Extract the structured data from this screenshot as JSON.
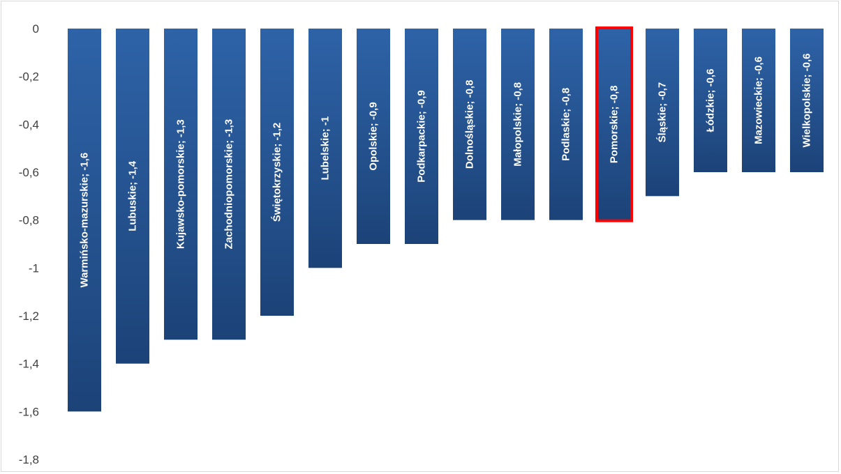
{
  "chart_data": {
    "type": "bar",
    "title": "",
    "xlabel": "",
    "ylabel": "",
    "ylim": [
      -1.8,
      0
    ],
    "y_ticks": [
      "0",
      "-0,2",
      "-0,4",
      "-0,6",
      "-0,8",
      "-1",
      "-1,2",
      "-1,4",
      "-1,6",
      "-1,8"
    ],
    "y_tick_values": [
      0,
      -0.2,
      -0.4,
      -0.6,
      -0.8,
      -1,
      -1.2,
      -1.4,
      -1.6,
      -1.8
    ],
    "grid": false,
    "legend": "none",
    "bar_color": "#2e63a8",
    "bar_color_dark": "#1c4378",
    "highlight_color": "#ff0000",
    "highlight_category": "Pomorskie",
    "categories": [
      "Warmińsko-mazurskie",
      "Lubuskie",
      "Kujawsko-pomorskie",
      "Zachodniopomorskie",
      "Świętokrzyskie",
      "Lubelskie",
      "Opolskie",
      "Podkarpackie",
      "Dolnośląskie",
      "Małopolskie",
      "Podlaskie",
      "Pomorskie",
      "Śląskie",
      "Łódzkie",
      "Mazowieckie",
      "Wielkopolskie"
    ],
    "values": [
      -1.6,
      -1.4,
      -1.3,
      -1.3,
      -1.2,
      -1,
      -0.9,
      -0.9,
      -0.8,
      -0.8,
      -0.8,
      -0.8,
      -0.7,
      -0.6,
      -0.6,
      -0.6
    ],
    "data_labels": [
      "Warmińsko-mazurskie; -1,6",
      "Lubuskie; -1,4",
      "Kujawsko-pomorskie; -1,3",
      "Zachodniopomorskie; -1,3",
      "Świętokrzyskie; -1,2",
      "Lubelskie; -1",
      "Opolskie; -0,9",
      "Podkarpackie; -0,9",
      "Dolnośląskie; -0,8",
      "Małopolskie; -0,8",
      "Podlaskie; -0,8",
      "Pomorskie; -0,8",
      "Śląskie; -0,7",
      "Łódzkie; -0,6",
      "Mazowieckie; -0,6",
      "Wielkopolskie; -0,6"
    ]
  }
}
